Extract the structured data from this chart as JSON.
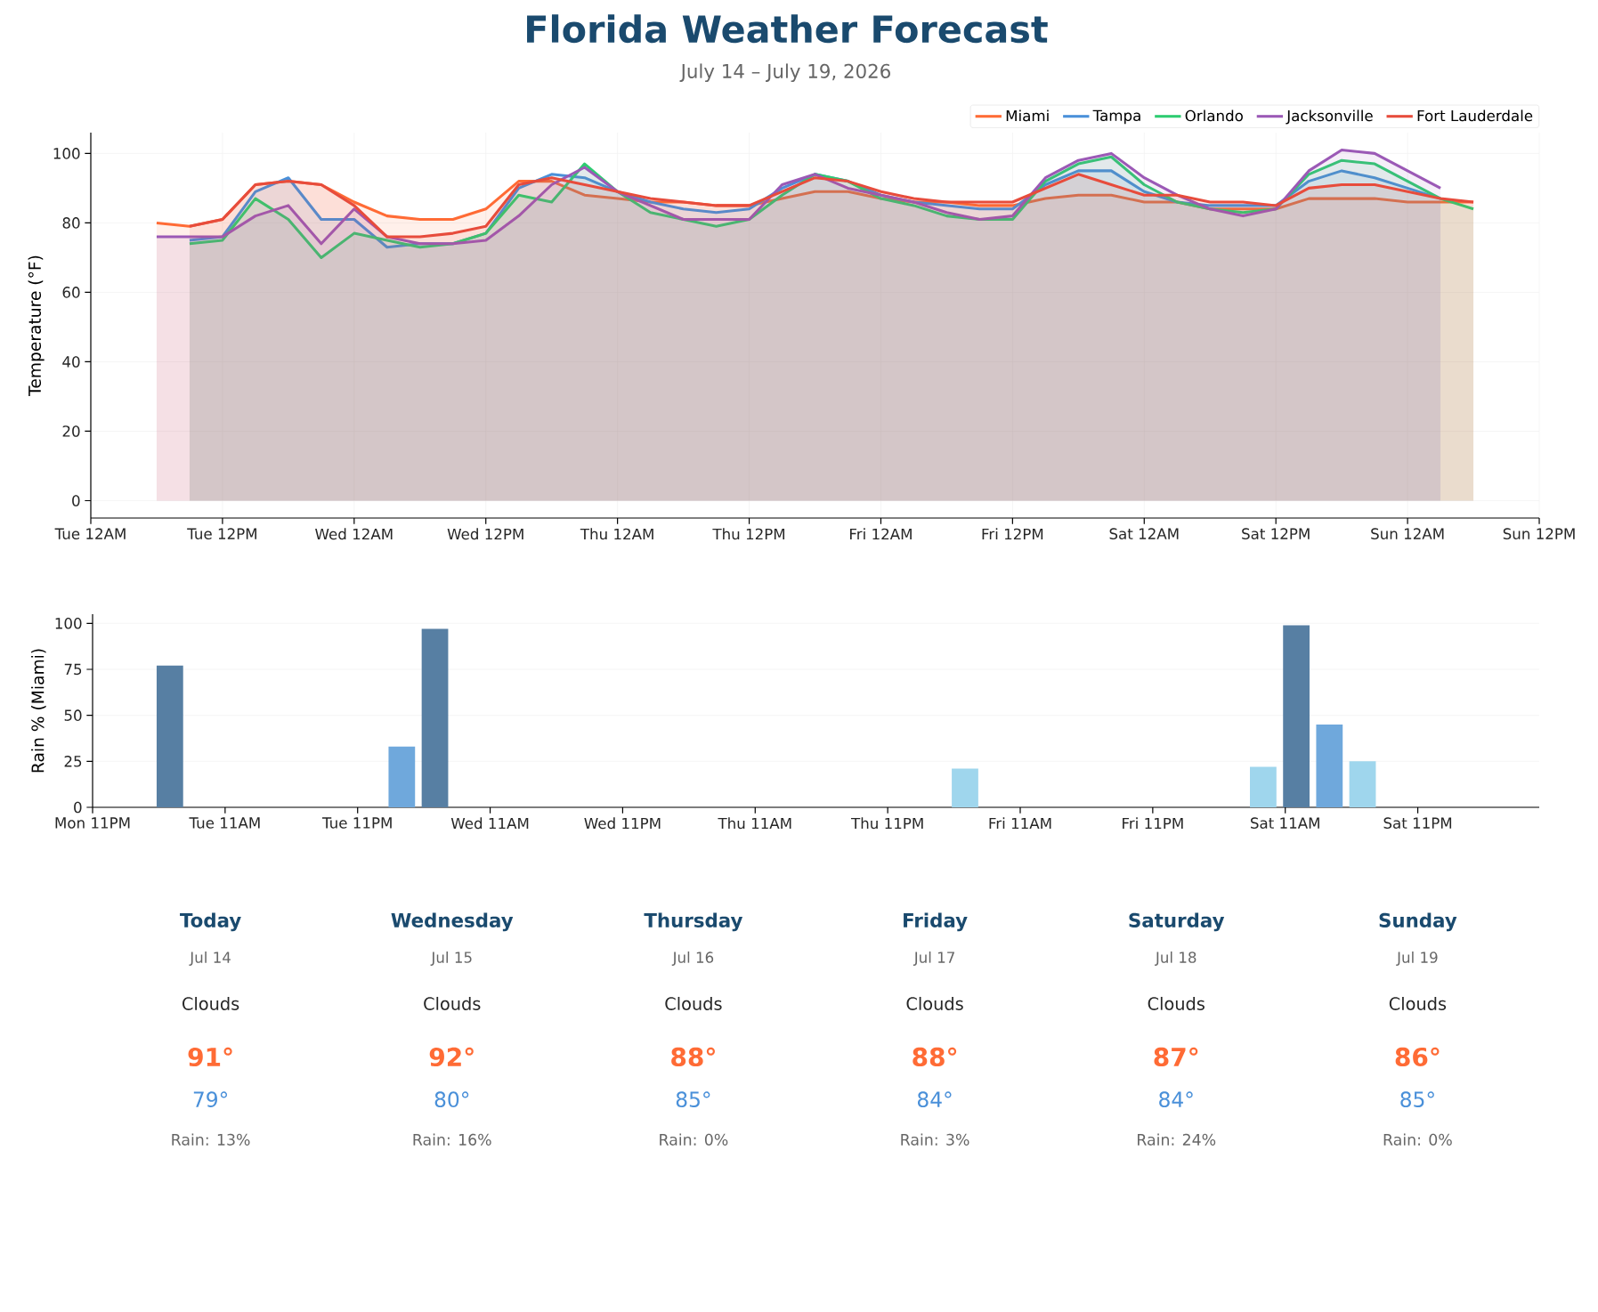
{
  "chart_data": [
    {
      "type": "area",
      "title": "Florida Weather Forecast",
      "subtitle": "July 14 – July 19, 2026",
      "ylabel": "Temperature (°F)",
      "xlim": [
        "2026-07-14T00:00",
        "2026-07-19T12:00"
      ],
      "ylim": [
        -5,
        106
      ],
      "yticks": [
        0,
        20,
        40,
        60,
        80,
        100
      ],
      "xticks": [
        {
          "value": "2026-07-14T00:00",
          "label": "Tue 12AM"
        },
        {
          "value": "2026-07-14T12:00",
          "label": "Tue 12PM"
        },
        {
          "value": "2026-07-15T00:00",
          "label": "Wed 12AM"
        },
        {
          "value": "2026-07-15T12:00",
          "label": "Wed 12PM"
        },
        {
          "value": "2026-07-16T00:00",
          "label": "Thu 12AM"
        },
        {
          "value": "2026-07-16T12:00",
          "label": "Thu 12PM"
        },
        {
          "value": "2026-07-17T00:00",
          "label": "Fri 12AM"
        },
        {
          "value": "2026-07-17T12:00",
          "label": "Fri 12PM"
        },
        {
          "value": "2026-07-18T00:00",
          "label": "Sat 12AM"
        },
        {
          "value": "2026-07-18T12:00",
          "label": "Sat 12PM"
        },
        {
          "value": "2026-07-19T00:00",
          "label": "Sun 12AM"
        },
        {
          "value": "2026-07-19T12:00",
          "label": "Sun 12PM"
        }
      ],
      "grid": true,
      "legend": "top right",
      "series": [
        {
          "name": "Miami",
          "color": "#ff6b35",
          "x": [
            "2026-07-14T06:00",
            "2026-07-14T09:00",
            "2026-07-14T12:00",
            "2026-07-14T15:00",
            "2026-07-14T18:00",
            "2026-07-14T21:00",
            "2026-07-15T00:00",
            "2026-07-15T03:00",
            "2026-07-15T06:00",
            "2026-07-15T09:00",
            "2026-07-15T12:00",
            "2026-07-15T15:00",
            "2026-07-15T18:00",
            "2026-07-15T21:00",
            "2026-07-16T00:00",
            "2026-07-16T03:00",
            "2026-07-16T06:00",
            "2026-07-16T09:00",
            "2026-07-16T12:00",
            "2026-07-16T15:00",
            "2026-07-16T18:00",
            "2026-07-16T21:00",
            "2026-07-17T00:00",
            "2026-07-17T03:00",
            "2026-07-17T06:00",
            "2026-07-17T09:00",
            "2026-07-17T12:00",
            "2026-07-17T15:00",
            "2026-07-17T18:00",
            "2026-07-17T21:00",
            "2026-07-18T00:00",
            "2026-07-18T03:00",
            "2026-07-18T06:00",
            "2026-07-18T09:00",
            "2026-07-18T12:00",
            "2026-07-18T15:00",
            "2026-07-18T18:00",
            "2026-07-18T21:00",
            "2026-07-19T00:00",
            "2026-07-19T03:00",
            "2026-07-19T06:00"
          ],
          "values": [
            80,
            79,
            81,
            91,
            92,
            91,
            86,
            82,
            81,
            81,
            84,
            92,
            92,
            88,
            87,
            86,
            86,
            85,
            85,
            87,
            89,
            89,
            87,
            86,
            86,
            85,
            85,
            87,
            88,
            88,
            86,
            86,
            84,
            84,
            84,
            87,
            87,
            87,
            86,
            86,
            86
          ]
        },
        {
          "name": "Tampa",
          "color": "#4a90d9",
          "x": [
            "2026-07-14T09:00",
            "2026-07-14T12:00",
            "2026-07-14T15:00",
            "2026-07-14T18:00",
            "2026-07-14T21:00",
            "2026-07-15T00:00",
            "2026-07-15T03:00",
            "2026-07-15T06:00",
            "2026-07-15T09:00",
            "2026-07-15T12:00",
            "2026-07-15T15:00",
            "2026-07-15T18:00",
            "2026-07-15T21:00",
            "2026-07-16T00:00",
            "2026-07-16T03:00",
            "2026-07-16T06:00",
            "2026-07-16T09:00",
            "2026-07-16T12:00",
            "2026-07-16T15:00",
            "2026-07-16T18:00",
            "2026-07-16T21:00",
            "2026-07-17T00:00",
            "2026-07-17T03:00",
            "2026-07-17T06:00",
            "2026-07-17T09:00",
            "2026-07-17T12:00",
            "2026-07-17T15:00",
            "2026-07-17T18:00",
            "2026-07-17T21:00",
            "2026-07-18T00:00",
            "2026-07-18T03:00",
            "2026-07-18T06:00",
            "2026-07-18T09:00",
            "2026-07-18T12:00",
            "2026-07-18T15:00",
            "2026-07-18T18:00",
            "2026-07-18T21:00",
            "2026-07-19T00:00",
            "2026-07-19T03:00"
          ],
          "values": [
            75,
            76,
            89,
            93,
            81,
            81,
            73,
            74,
            74,
            77,
            90,
            94,
            93,
            89,
            86,
            84,
            83,
            84,
            90,
            94,
            92,
            88,
            86,
            85,
            84,
            84,
            91,
            95,
            95,
            89,
            86,
            85,
            85,
            85,
            92,
            95,
            93,
            90,
            87
          ]
        },
        {
          "name": "Orlando",
          "color": "#2ecc71",
          "x": [
            "2026-07-14T09:00",
            "2026-07-14T12:00",
            "2026-07-14T15:00",
            "2026-07-14T18:00",
            "2026-07-14T21:00",
            "2026-07-15T00:00",
            "2026-07-15T03:00",
            "2026-07-15T06:00",
            "2026-07-15T09:00",
            "2026-07-15T12:00",
            "2026-07-15T15:00",
            "2026-07-15T18:00",
            "2026-07-15T21:00",
            "2026-07-16T00:00",
            "2026-07-16T03:00",
            "2026-07-16T06:00",
            "2026-07-16T09:00",
            "2026-07-16T12:00",
            "2026-07-16T15:00",
            "2026-07-16T18:00",
            "2026-07-16T21:00",
            "2026-07-17T00:00",
            "2026-07-17T03:00",
            "2026-07-17T06:00",
            "2026-07-17T09:00",
            "2026-07-17T12:00",
            "2026-07-17T15:00",
            "2026-07-17T18:00",
            "2026-07-17T21:00",
            "2026-07-18T00:00",
            "2026-07-18T03:00",
            "2026-07-18T06:00",
            "2026-07-18T09:00",
            "2026-07-18T12:00",
            "2026-07-18T15:00",
            "2026-07-18T18:00",
            "2026-07-18T21:00",
            "2026-07-19T00:00",
            "2026-07-19T03:00",
            "2026-07-19T06:00"
          ],
          "values": [
            74,
            75,
            87,
            81,
            70,
            77,
            75,
            73,
            74,
            77,
            88,
            86,
            97,
            89,
            83,
            81,
            79,
            81,
            88,
            94,
            92,
            87,
            85,
            82,
            81,
            81,
            92,
            97,
            99,
            91,
            86,
            84,
            83,
            84,
            94,
            98,
            97,
            92,
            87,
            84
          ]
        },
        {
          "name": "Jacksonville",
          "color": "#9b59b6",
          "x": [
            "2026-07-14T06:00",
            "2026-07-14T09:00",
            "2026-07-14T12:00",
            "2026-07-14T15:00",
            "2026-07-14T18:00",
            "2026-07-14T21:00",
            "2026-07-15T00:00",
            "2026-07-15T03:00",
            "2026-07-15T06:00",
            "2026-07-15T09:00",
            "2026-07-15T12:00",
            "2026-07-15T15:00",
            "2026-07-15T18:00",
            "2026-07-15T21:00",
            "2026-07-16T00:00",
            "2026-07-16T03:00",
            "2026-07-16T06:00",
            "2026-07-16T09:00",
            "2026-07-16T12:00",
            "2026-07-16T15:00",
            "2026-07-16T18:00",
            "2026-07-16T21:00",
            "2026-07-17T00:00",
            "2026-07-17T03:00",
            "2026-07-17T06:00",
            "2026-07-17T09:00",
            "2026-07-17T12:00",
            "2026-07-17T15:00",
            "2026-07-17T18:00",
            "2026-07-17T21:00",
            "2026-07-18T00:00",
            "2026-07-18T03:00",
            "2026-07-18T06:00",
            "2026-07-18T09:00",
            "2026-07-18T12:00",
            "2026-07-18T15:00",
            "2026-07-18T18:00",
            "2026-07-18T21:00",
            "2026-07-19T00:00",
            "2026-07-19T03:00"
          ],
          "values": [
            76,
            76,
            76,
            82,
            85,
            74,
            84,
            76,
            74,
            74,
            75,
            82,
            91,
            96,
            89,
            85,
            81,
            81,
            81,
            91,
            94,
            90,
            88,
            86,
            83,
            81,
            82,
            93,
            98,
            100,
            93,
            88,
            84,
            82,
            84,
            95,
            101,
            100,
            95,
            90
          ]
        },
        {
          "name": "Fort Lauderdale",
          "color": "#e74c3c",
          "x": [
            "2026-07-14T09:00",
            "2026-07-14T12:00",
            "2026-07-14T15:00",
            "2026-07-14T18:00",
            "2026-07-14T21:00",
            "2026-07-15T00:00",
            "2026-07-15T03:00",
            "2026-07-15T06:00",
            "2026-07-15T09:00",
            "2026-07-15T12:00",
            "2026-07-15T15:00",
            "2026-07-15T18:00",
            "2026-07-15T21:00",
            "2026-07-16T00:00",
            "2026-07-16T03:00",
            "2026-07-16T06:00",
            "2026-07-16T09:00",
            "2026-07-16T12:00",
            "2026-07-16T15:00",
            "2026-07-16T18:00",
            "2026-07-16T21:00",
            "2026-07-17T00:00",
            "2026-07-17T03:00",
            "2026-07-17T06:00",
            "2026-07-17T09:00",
            "2026-07-17T12:00",
            "2026-07-17T15:00",
            "2026-07-17T18:00",
            "2026-07-17T21:00",
            "2026-07-18T00:00",
            "2026-07-18T03:00",
            "2026-07-18T06:00",
            "2026-07-18T09:00",
            "2026-07-18T12:00",
            "2026-07-18T15:00",
            "2026-07-18T18:00",
            "2026-07-18T21:00",
            "2026-07-19T00:00",
            "2026-07-19T03:00",
            "2026-07-19T06:00"
          ],
          "values": [
            79,
            81,
            91,
            92,
            91,
            85,
            76,
            76,
            77,
            79,
            91,
            93,
            91,
            89,
            87,
            86,
            85,
            85,
            89,
            93,
            92,
            89,
            87,
            86,
            86,
            86,
            90,
            94,
            91,
            88,
            88,
            86,
            86,
            85,
            90,
            91,
            91,
            89,
            87,
            86
          ]
        }
      ]
    },
    {
      "type": "bar",
      "ylabel": "Rain % (Miami)",
      "xlim": [
        "2026-07-13T23:00",
        "2026-07-19T10:00"
      ],
      "ylim": [
        0,
        105
      ],
      "yticks": [
        0,
        25,
        50,
        75,
        100
      ],
      "xticks": [
        {
          "value": "2026-07-13T23:00",
          "label": "Mon 11PM"
        },
        {
          "value": "2026-07-14T11:00",
          "label": "Tue 11AM"
        },
        {
          "value": "2026-07-14T23:00",
          "label": "Tue 11PM"
        },
        {
          "value": "2026-07-15T11:00",
          "label": "Wed 11AM"
        },
        {
          "value": "2026-07-15T23:00",
          "label": "Wed 11PM"
        },
        {
          "value": "2026-07-16T11:00",
          "label": "Thu 11AM"
        },
        {
          "value": "2026-07-16T23:00",
          "label": "Thu 11PM"
        },
        {
          "value": "2026-07-17T11:00",
          "label": "Fri 11AM"
        },
        {
          "value": "2026-07-17T23:00",
          "label": "Fri 11PM"
        },
        {
          "value": "2026-07-18T11:00",
          "label": "Sat 11AM"
        },
        {
          "value": "2026-07-18T23:00",
          "label": "Sat 11PM"
        }
      ],
      "grid": "y",
      "x": [
        "2026-07-14T06:00",
        "2026-07-15T03:00",
        "2026-07-15T06:00",
        "2026-07-17T06:00",
        "2026-07-18T09:00",
        "2026-07-18T12:00",
        "2026-07-18T15:00",
        "2026-07-18T18:00"
      ],
      "values": [
        77,
        33,
        97,
        21,
        22,
        99,
        45,
        25
      ],
      "colors": [
        "#577fa3",
        "#6fa8dc",
        "#577fa3",
        "#9fd6ed",
        "#9fd6ed",
        "#577fa3",
        "#6fa8dc",
        "#9fd6ed"
      ]
    },
    {
      "type": "other",
      "categories": [
        "Today",
        "Wednesday",
        "Thursday",
        "Friday",
        "Saturday",
        "Sunday"
      ],
      "annotations": [
        "Jul 14",
        "Clouds",
        "91°",
        "79°",
        "Rain: 13%",
        "Jul 15",
        "Clouds",
        "92°",
        "80°",
        "Rain: 16%",
        "Jul 16",
        "Clouds",
        "88°",
        "85°",
        "Rain: 0%",
        "Jul 17",
        "Clouds",
        "88°",
        "84°",
        "Rain: 3%",
        "Jul 18",
        "Clouds",
        "87°",
        "84°",
        "Rain: 24%",
        "Jul 19",
        "Clouds",
        "86°",
        "85°",
        "Rain: 0%"
      ]
    }
  ]
}
